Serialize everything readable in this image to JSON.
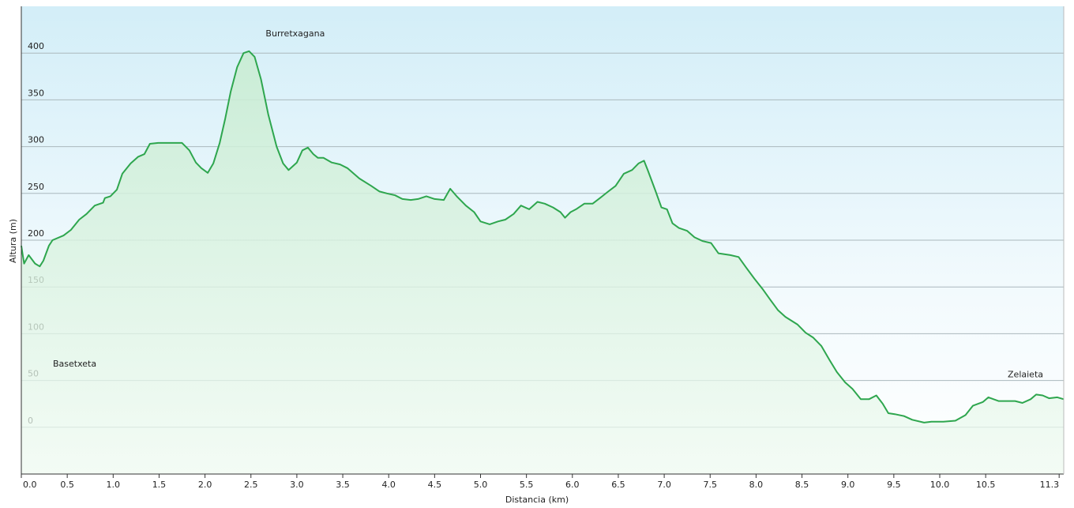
{
  "chart_data": {
    "type": "area",
    "xlabel": "Distancia  (km)",
    "ylabel": "Altura (m)",
    "x": [
      0,
      0.03,
      0.08,
      0.15,
      0.2,
      0.24,
      0.3,
      0.34,
      0.46,
      0.54,
      0.63,
      0.71,
      0.8,
      0.89,
      0.91,
      0.97,
      1.04,
      1.1,
      1.19,
      1.27,
      1.34,
      1.4,
      1.49,
      1.57,
      1.75,
      1.83,
      1.9,
      1.96,
      2.03,
      2.09,
      2.16,
      2.22,
      2.28,
      2.35,
      2.42,
      2.48,
      2.54,
      2.61,
      2.69,
      2.78,
      2.85,
      2.91,
      3.0,
      3.06,
      3.12,
      3.18,
      3.23,
      3.29,
      3.38,
      3.47,
      3.55,
      3.68,
      3.81,
      3.9,
      3.98,
      4.07,
      4.15,
      4.24,
      4.32,
      4.41,
      4.5,
      4.6,
      4.67,
      4.74,
      4.84,
      4.93,
      5.0,
      5.1,
      5.19,
      5.27,
      5.36,
      5.44,
      5.53,
      5.62,
      5.7,
      5.79,
      5.87,
      5.92,
      5.98,
      6.04,
      6.13,
      6.22,
      6.3,
      6.39,
      6.47,
      6.56,
      6.65,
      6.72,
      6.78,
      6.82,
      6.9,
      6.97,
      7.03,
      7.09,
      7.16,
      7.25,
      7.33,
      7.42,
      7.51,
      7.59,
      7.72,
      7.81,
      7.89,
      7.98,
      8.07,
      8.15,
      8.24,
      8.32,
      8.45,
      8.54,
      8.62,
      8.71,
      8.8,
      8.88,
      8.97,
      9.05,
      9.14,
      9.23,
      9.31,
      9.38,
      9.44,
      9.51,
      9.61,
      9.7,
      9.83,
      9.91,
      10.04,
      10.17,
      10.28,
      10.36,
      10.47,
      10.53,
      10.64,
      10.82,
      10.9,
      10.99,
      11.05,
      11.12,
      11.19,
      11.28,
      11.35
    ],
    "series": [
      {
        "color": "#2ea64e",
        "values": [
          194,
          175,
          184,
          175,
          172,
          178,
          194,
          200,
          205,
          211,
          222,
          228,
          237,
          240,
          245,
          247,
          254,
          271,
          282,
          289,
          292,
          303,
          304,
          304,
          304,
          296,
          283,
          277,
          272,
          282,
          304,
          330,
          359,
          385,
          400,
          402,
          396,
          372,
          334,
          300,
          282,
          275,
          283,
          296,
          299,
          292,
          288,
          288,
          283,
          281,
          277,
          266,
          258,
          252,
          250,
          248,
          244,
          243,
          244,
          247,
          244,
          243,
          255,
          247,
          237,
          230,
          220,
          217,
          220,
          222,
          228,
          237,
          233,
          241,
          239,
          235,
          230,
          224,
          230,
          233,
          239,
          239,
          245,
          252,
          258,
          271,
          275,
          282,
          285,
          275,
          254,
          235,
          233,
          218,
          213,
          210,
          203,
          199,
          197,
          186,
          184,
          182,
          171,
          159,
          148,
          137,
          125,
          118,
          110,
          101,
          96,
          87,
          72,
          59,
          48,
          41,
          30,
          30,
          34,
          25,
          15,
          14,
          12,
          8,
          5,
          6,
          6,
          7,
          13,
          23,
          27,
          32,
          28,
          28,
          26,
          30,
          35,
          34,
          31,
          32,
          30
        ]
      }
    ],
    "annotations": [
      {
        "text": "Basetxeta",
        "x": 0,
        "y": 194
      },
      {
        "text": "Burretxagana",
        "x": 2.48,
        "y": 402
      },
      {
        "text": "Zelaieta",
        "x": 11.35,
        "y": 30
      }
    ],
    "xlim": [
      0,
      11.35
    ],
    "ylim": [
      -50,
      450
    ],
    "xticks": [
      {
        "value": 0,
        "label": "0.0"
      },
      0.5,
      {
        "value": 1,
        "label": "1.0"
      },
      1.5,
      {
        "value": 2,
        "label": "2.0"
      },
      2.5,
      {
        "value": 3,
        "label": "3.0"
      },
      3.5,
      {
        "value": 4,
        "label": "4.0"
      },
      4.5,
      {
        "value": 5,
        "label": "5.0"
      },
      5.5,
      {
        "value": 6,
        "label": "6.0"
      },
      6.5,
      {
        "value": 7,
        "label": "7.0"
      },
      7.5,
      {
        "value": 8,
        "label": "8.0"
      },
      8.5,
      {
        "value": 9,
        "label": "9.0"
      },
      9.5,
      {
        "value": 10,
        "label": "10.0"
      },
      10.5,
      11.3
    ],
    "yticks": [
      0,
      50,
      100,
      150,
      200,
      250,
      300,
      350,
      400
    ],
    "grid": true
  }
}
